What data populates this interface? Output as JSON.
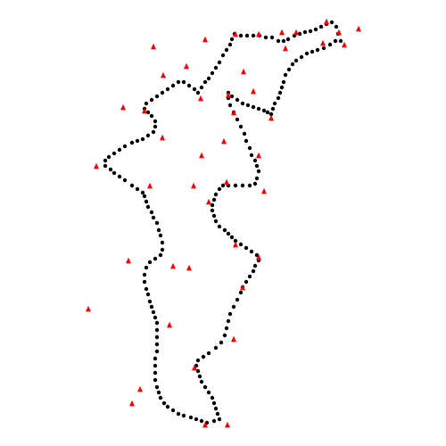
{
  "colors": {
    "background": "#ffffff",
    "outline_points": "#000000",
    "scattered_points": "#ff0000"
  },
  "legend": {
    "outline_points": "black-dot",
    "scattered_points": "red-triangle"
  }
}
